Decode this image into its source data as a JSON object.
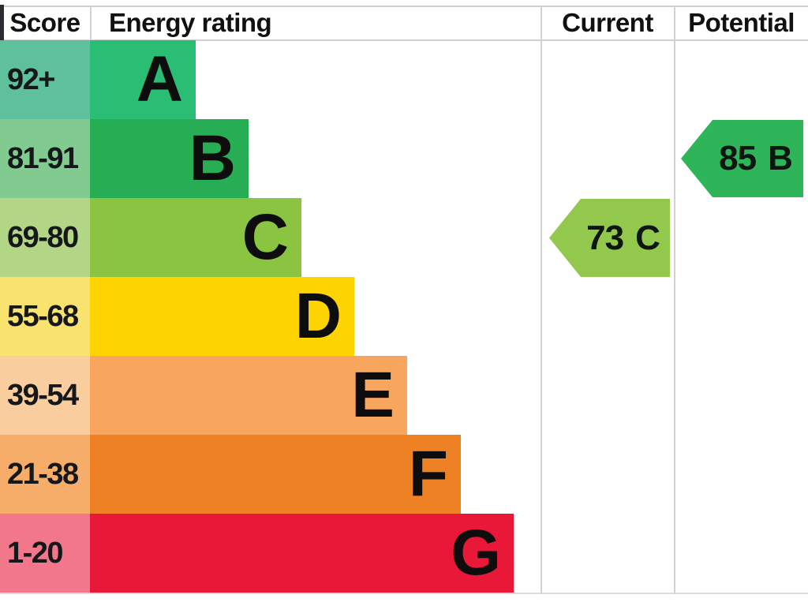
{
  "header": {
    "score_label": "Score",
    "energy_rating_label": "Energy rating",
    "current_label": "Current",
    "potential_label": "Potential"
  },
  "chart_data": {
    "type": "bar",
    "title": "EPC energy efficiency rating chart",
    "categories": [
      "A",
      "B",
      "C",
      "D",
      "E",
      "F",
      "G"
    ],
    "score_ranges": [
      "92+",
      "81-91",
      "69-80",
      "55-68",
      "39-54",
      "21-38",
      "1-20"
    ],
    "bands": [
      {
        "grade": "A",
        "range": "92+",
        "bar_color": "#2abd74",
        "range_cell_color": "#5ec19c"
      },
      {
        "grade": "B",
        "range": "81-91",
        "bar_color": "#27ad53",
        "range_cell_color": "#81ca90"
      },
      {
        "grade": "C",
        "range": "69-80",
        "bar_color": "#8ac441",
        "range_cell_color": "#b2d685"
      },
      {
        "grade": "D",
        "range": "55-68",
        "bar_color": "#fdd401",
        "range_cell_color": "#fae26f"
      },
      {
        "grade": "E",
        "range": "39-54",
        "bar_color": "#f8a55e",
        "range_cell_color": "#facd9f"
      },
      {
        "grade": "F",
        "range": "21-38",
        "bar_color": "#ee8124",
        "range_cell_color": "#f5ad69"
      },
      {
        "grade": "G",
        "range": "1-20",
        "bar_color": "#e91839",
        "range_cell_color": "#f2778b"
      }
    ],
    "current": {
      "value": "73",
      "grade": "C",
      "arrow_color": "#92c94c"
    },
    "potential": {
      "value": "85",
      "grade": "B",
      "arrow_color": "#2eb459"
    },
    "legend_position": "none",
    "axis_note": "grades A (best, top) to G (worst, bottom); bar length increases toward worse grades"
  },
  "colors": {
    "border": "#cfcfcf",
    "header_left_tick": "#2b2b31",
    "text": "#111111",
    "background": "#ffffff"
  }
}
